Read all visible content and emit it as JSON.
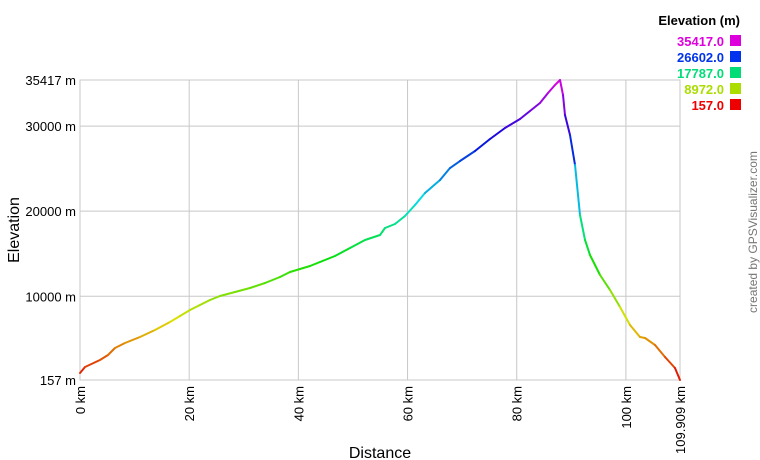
{
  "chart_data": {
    "type": "line",
    "title": "",
    "xlabel": "Distance",
    "ylabel": "Elevation",
    "xlim": [
      0,
      109.909
    ],
    "ylim": [
      157,
      35417
    ],
    "grid": true,
    "x_ticks": [
      0,
      20,
      40,
      60,
      80,
      100,
      109.909
    ],
    "x_tick_labels": [
      "0 km",
      "20 km",
      "40 km",
      "60 km",
      "80 km",
      "100 km",
      "109.909 km"
    ],
    "y_ticks": [
      157,
      10000,
      20000,
      30000,
      35417
    ],
    "y_tick_labels": [
      "157 m",
      "10000 m",
      "20000 m",
      "30000 m",
      "35417 m"
    ],
    "legend": {
      "title": "Elevation (m)",
      "placement": "top-right",
      "entries": [
        {
          "label": "35417.0",
          "color": "#dd00dd"
        },
        {
          "label": "26602.0",
          "color": "#0033ee"
        },
        {
          "label": "17787.0",
          "color": "#00dd77"
        },
        {
          "label": "8972.0",
          "color": "#aadd00"
        },
        {
          "label": "157.0",
          "color": "#ee0000"
        }
      ]
    },
    "series": [
      {
        "color_by": "elevation",
        "x": [
          0,
          0.92,
          3.66,
          5.13,
          6.41,
          8.24,
          10.99,
          13.74,
          16.49,
          18.32,
          20.15,
          21.98,
          23.81,
          25.65,
          28.39,
          31.14,
          33.89,
          36.64,
          38.47,
          40.3,
          42.13,
          43.96,
          46.71,
          49.46,
          52.21,
          54.96,
          55.87,
          57.7,
          59.53,
          61.37,
          63.2,
          65.95,
          67.78,
          69.61,
          72.36,
          75.11,
          77.85,
          80.6,
          82.43,
          84.26,
          85.73,
          87.01,
          87.93,
          88.48,
          88.84,
          89.76,
          90.68,
          91.59,
          92.51,
          93.42,
          95.26,
          97.09,
          98.92,
          100.75,
          102.58,
          103.5,
          105.33,
          107.16,
          108.99,
          109.909
        ],
        "y": [
          980,
          1685,
          2508,
          3095,
          3918,
          4506,
          5211,
          6034,
          6974,
          7679,
          8384,
          8972,
          9560,
          10030,
          10500,
          10970,
          11558,
          12263,
          12851,
          13203,
          13556,
          14026,
          14731,
          15671,
          16612,
          17199,
          18022,
          18492,
          19432,
          20725,
          22135,
          23663,
          25073,
          25896,
          27071,
          28482,
          29775,
          30832,
          31773,
          32713,
          33888,
          34828,
          35417,
          33654,
          31303,
          28952,
          25426,
          19550,
          16612,
          14849,
          12498,
          10735,
          8737,
          6621,
          5211,
          5093,
          4271,
          2860,
          1567,
          157
        ]
      }
    ]
  },
  "credit": "created by GPSVisualizer.com"
}
